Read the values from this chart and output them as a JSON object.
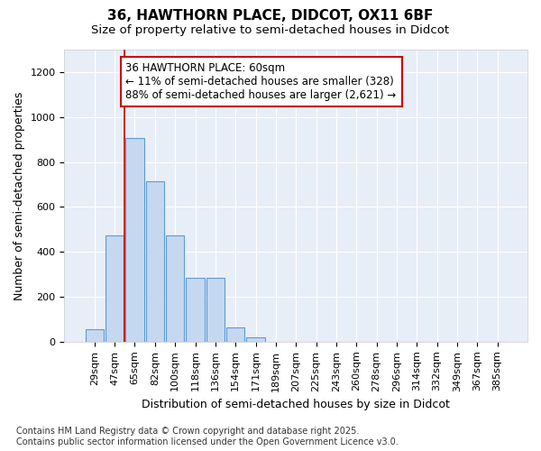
{
  "title_line1": "36, HAWTHORN PLACE, DIDCOT, OX11 6BF",
  "title_line2": "Size of property relative to semi-detached houses in Didcot",
  "xlabel": "Distribution of semi-detached houses by size in Didcot",
  "ylabel": "Number of semi-detached properties",
  "categories": [
    "29sqm",
    "47sqm",
    "65sqm",
    "82sqm",
    "100sqm",
    "118sqm",
    "136sqm",
    "154sqm",
    "171sqm",
    "189sqm",
    "207sqm",
    "225sqm",
    "243sqm",
    "260sqm",
    "278sqm",
    "296sqm",
    "314sqm",
    "332sqm",
    "349sqm",
    "367sqm",
    "385sqm"
  ],
  "values": [
    55,
    475,
    905,
    715,
    475,
    285,
    285,
    65,
    20,
    0,
    0,
    0,
    0,
    0,
    0,
    0,
    0,
    0,
    0,
    0,
    0
  ],
  "bar_color": "#c5d8f0",
  "bar_edge_color": "#5b9bd5",
  "vline_x": 2,
  "vline_color": "#cc0000",
  "annotation_text": "36 HAWTHORN PLACE: 60sqm\n← 11% of semi-detached houses are smaller (328)\n88% of semi-detached houses are larger (2,621) →",
  "annotation_box_color": "#ffffff",
  "annotation_box_edge": "#cc0000",
  "ylim": [
    0,
    1300
  ],
  "yticks": [
    0,
    200,
    400,
    600,
    800,
    1000,
    1200
  ],
  "background_color": "#ffffff",
  "plot_bg_color": "#e8eef8",
  "grid_color": "#ffffff",
  "footer_text": "Contains HM Land Registry data © Crown copyright and database right 2025.\nContains public sector information licensed under the Open Government Licence v3.0.",
  "title_fontsize": 11,
  "subtitle_fontsize": 9.5,
  "axis_label_fontsize": 9,
  "tick_fontsize": 8,
  "annotation_fontsize": 8.5,
  "footer_fontsize": 7
}
